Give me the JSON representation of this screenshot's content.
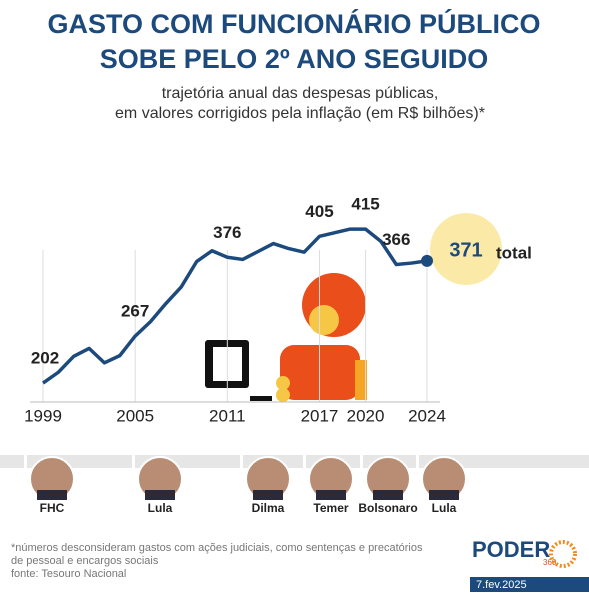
{
  "chart_data": {
    "type": "line",
    "title": [
      "GASTO COM FUNCIONÁRIO PÚBLICO",
      "SOBE PELO 2º ANO SEGUIDO"
    ],
    "subtitle": [
      "trajetória anual das despesas públicas,",
      "em valores corrigidos pela inflação (em R$ bilhões)*"
    ],
    "x": [
      1999,
      2000,
      2001,
      2002,
      2003,
      2004,
      2005,
      2006,
      2007,
      2008,
      2009,
      2010,
      2011,
      2012,
      2013,
      2014,
      2015,
      2016,
      2017,
      2018,
      2019,
      2020,
      2021,
      2022,
      2023,
      2024
    ],
    "series": [
      {
        "name": "gasto",
        "color": "#1d4a7c",
        "values": [
          202,
          217,
          239,
          250,
          230,
          240,
          267,
          287,
          312,
          335,
          370,
          385,
          376,
          373,
          384,
          395,
          388,
          383,
          405,
          410,
          415,
          415,
          398,
          366,
          368,
          371
        ]
      }
    ],
    "total_label": "total",
    "xlim": [
      1999,
      2024
    ],
    "xticks": [
      1999,
      2005,
      2011,
      2017,
      2020,
      2024
    ],
    "ylim": [
      180,
      440
    ],
    "presidents": [
      "FHC",
      "Lula",
      "Dilma",
      "Temer",
      "Bolsonaro",
      "Lula"
    ],
    "footnote": [
      "*números desconsideram gastos com ações judiciais, como sentenças e precatórios",
      "de pessoal e encargos sociais",
      "fonte: Tesouro Nacional"
    ],
    "brand": "PODER",
    "brand_sub": "360",
    "date": "7.fev.2025"
  }
}
